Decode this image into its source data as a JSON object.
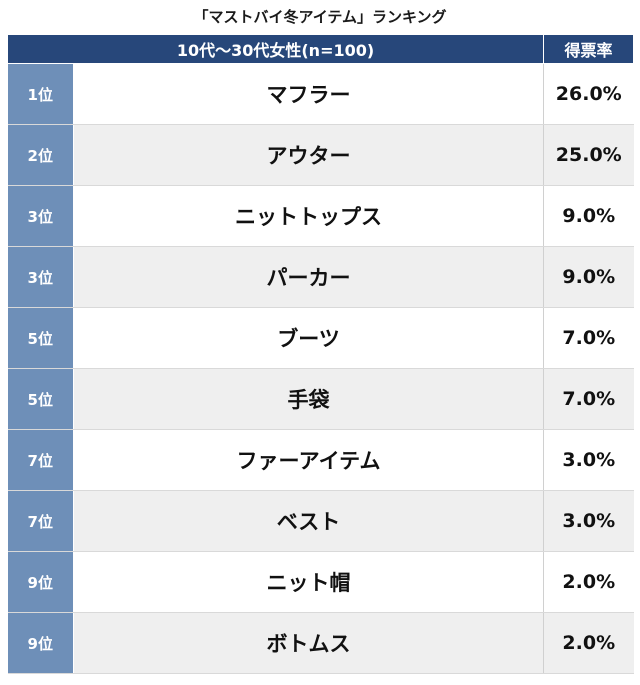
{
  "chart_data": {
    "type": "table",
    "title": "「マストバイ冬アイテム」ランキング",
    "header": {
      "group": "10代〜30代女性(n=100)",
      "value": "得票率"
    },
    "rows": [
      {
        "rank": "1位",
        "item": "マフラー",
        "value": "26.0%"
      },
      {
        "rank": "2位",
        "item": "アウター",
        "value": "25.0%"
      },
      {
        "rank": "3位",
        "item": "ニットトップス",
        "value": "9.0%"
      },
      {
        "rank": "3位",
        "item": "パーカー",
        "value": "9.0%"
      },
      {
        "rank": "5位",
        "item": "ブーツ",
        "value": "7.0%"
      },
      {
        "rank": "5位",
        "item": "手袋",
        "value": "7.0%"
      },
      {
        "rank": "7位",
        "item": "ファーアイテム",
        "value": "3.0%"
      },
      {
        "rank": "7位",
        "item": "ベスト",
        "value": "3.0%"
      },
      {
        "rank": "9位",
        "item": "ニット帽",
        "value": "2.0%"
      },
      {
        "rank": "9位",
        "item": "ボトムス",
        "value": "2.0%"
      }
    ]
  },
  "colors": {
    "header_bg": "#27477a",
    "rank_bg": "#6e8fb8",
    "row_alt_bg": "#efefef"
  }
}
